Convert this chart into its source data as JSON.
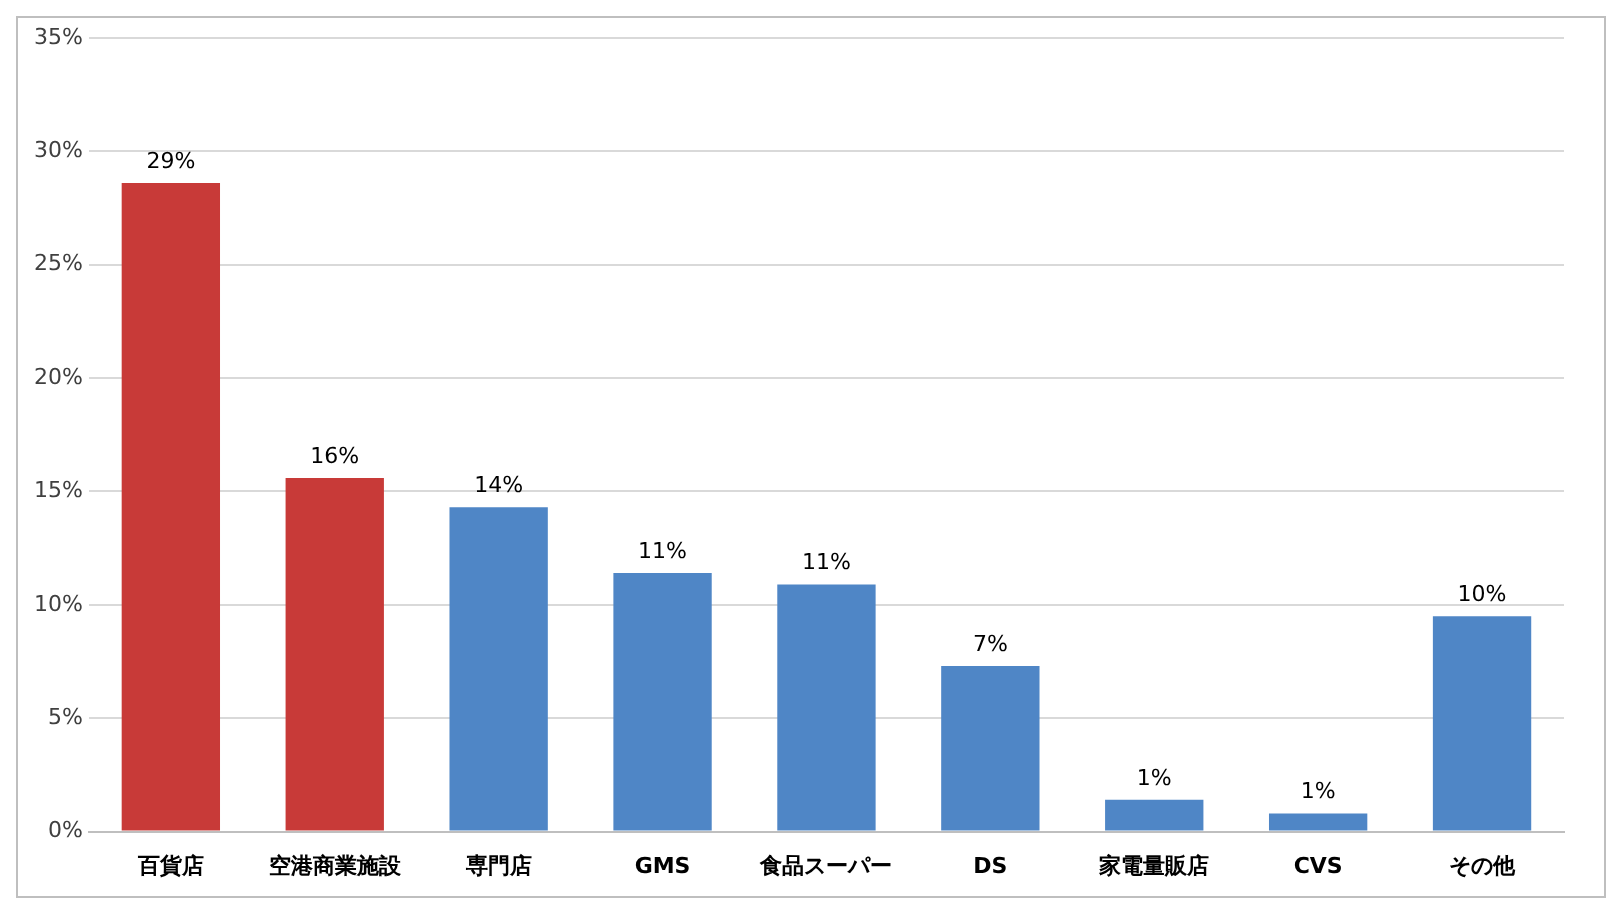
{
  "chart_data": {
    "type": "bar",
    "categories": [
      "百貨店",
      "空港商業施設",
      "専門店",
      "GMS",
      "食品スーパー",
      "DS",
      "家電量販店",
      "CVS",
      "その他"
    ],
    "values": [
      28.6,
      15.6,
      14.3,
      11.4,
      10.9,
      7.3,
      1.4,
      0.8,
      9.5
    ],
    "colors": [
      "#c83a38",
      "#c83a38",
      "#4f86c6",
      "#4f86c6",
      "#4f86c6",
      "#4f86c6",
      "#4f86c6",
      "#4f86c6",
      "#4f86c6"
    ],
    "value_labels": [
      "29%",
      "16%",
      "14%",
      "11%",
      "11%",
      "7%",
      "1%",
      "1%",
      "10%"
    ],
    "ylim": [
      0,
      35
    ],
    "yticks": [
      {
        "value": 0,
        "label": "0%"
      },
      {
        "value": 5,
        "label": "5%"
      },
      {
        "value": 10,
        "label": "10%"
      },
      {
        "value": 15,
        "label": "15%"
      },
      {
        "value": 20,
        "label": "20%"
      },
      {
        "value": 25,
        "label": "25%"
      },
      {
        "value": 30,
        "label": "30%"
      },
      {
        "value": 35,
        "label": "35%"
      }
    ],
    "grid": "y",
    "legend": false
  }
}
